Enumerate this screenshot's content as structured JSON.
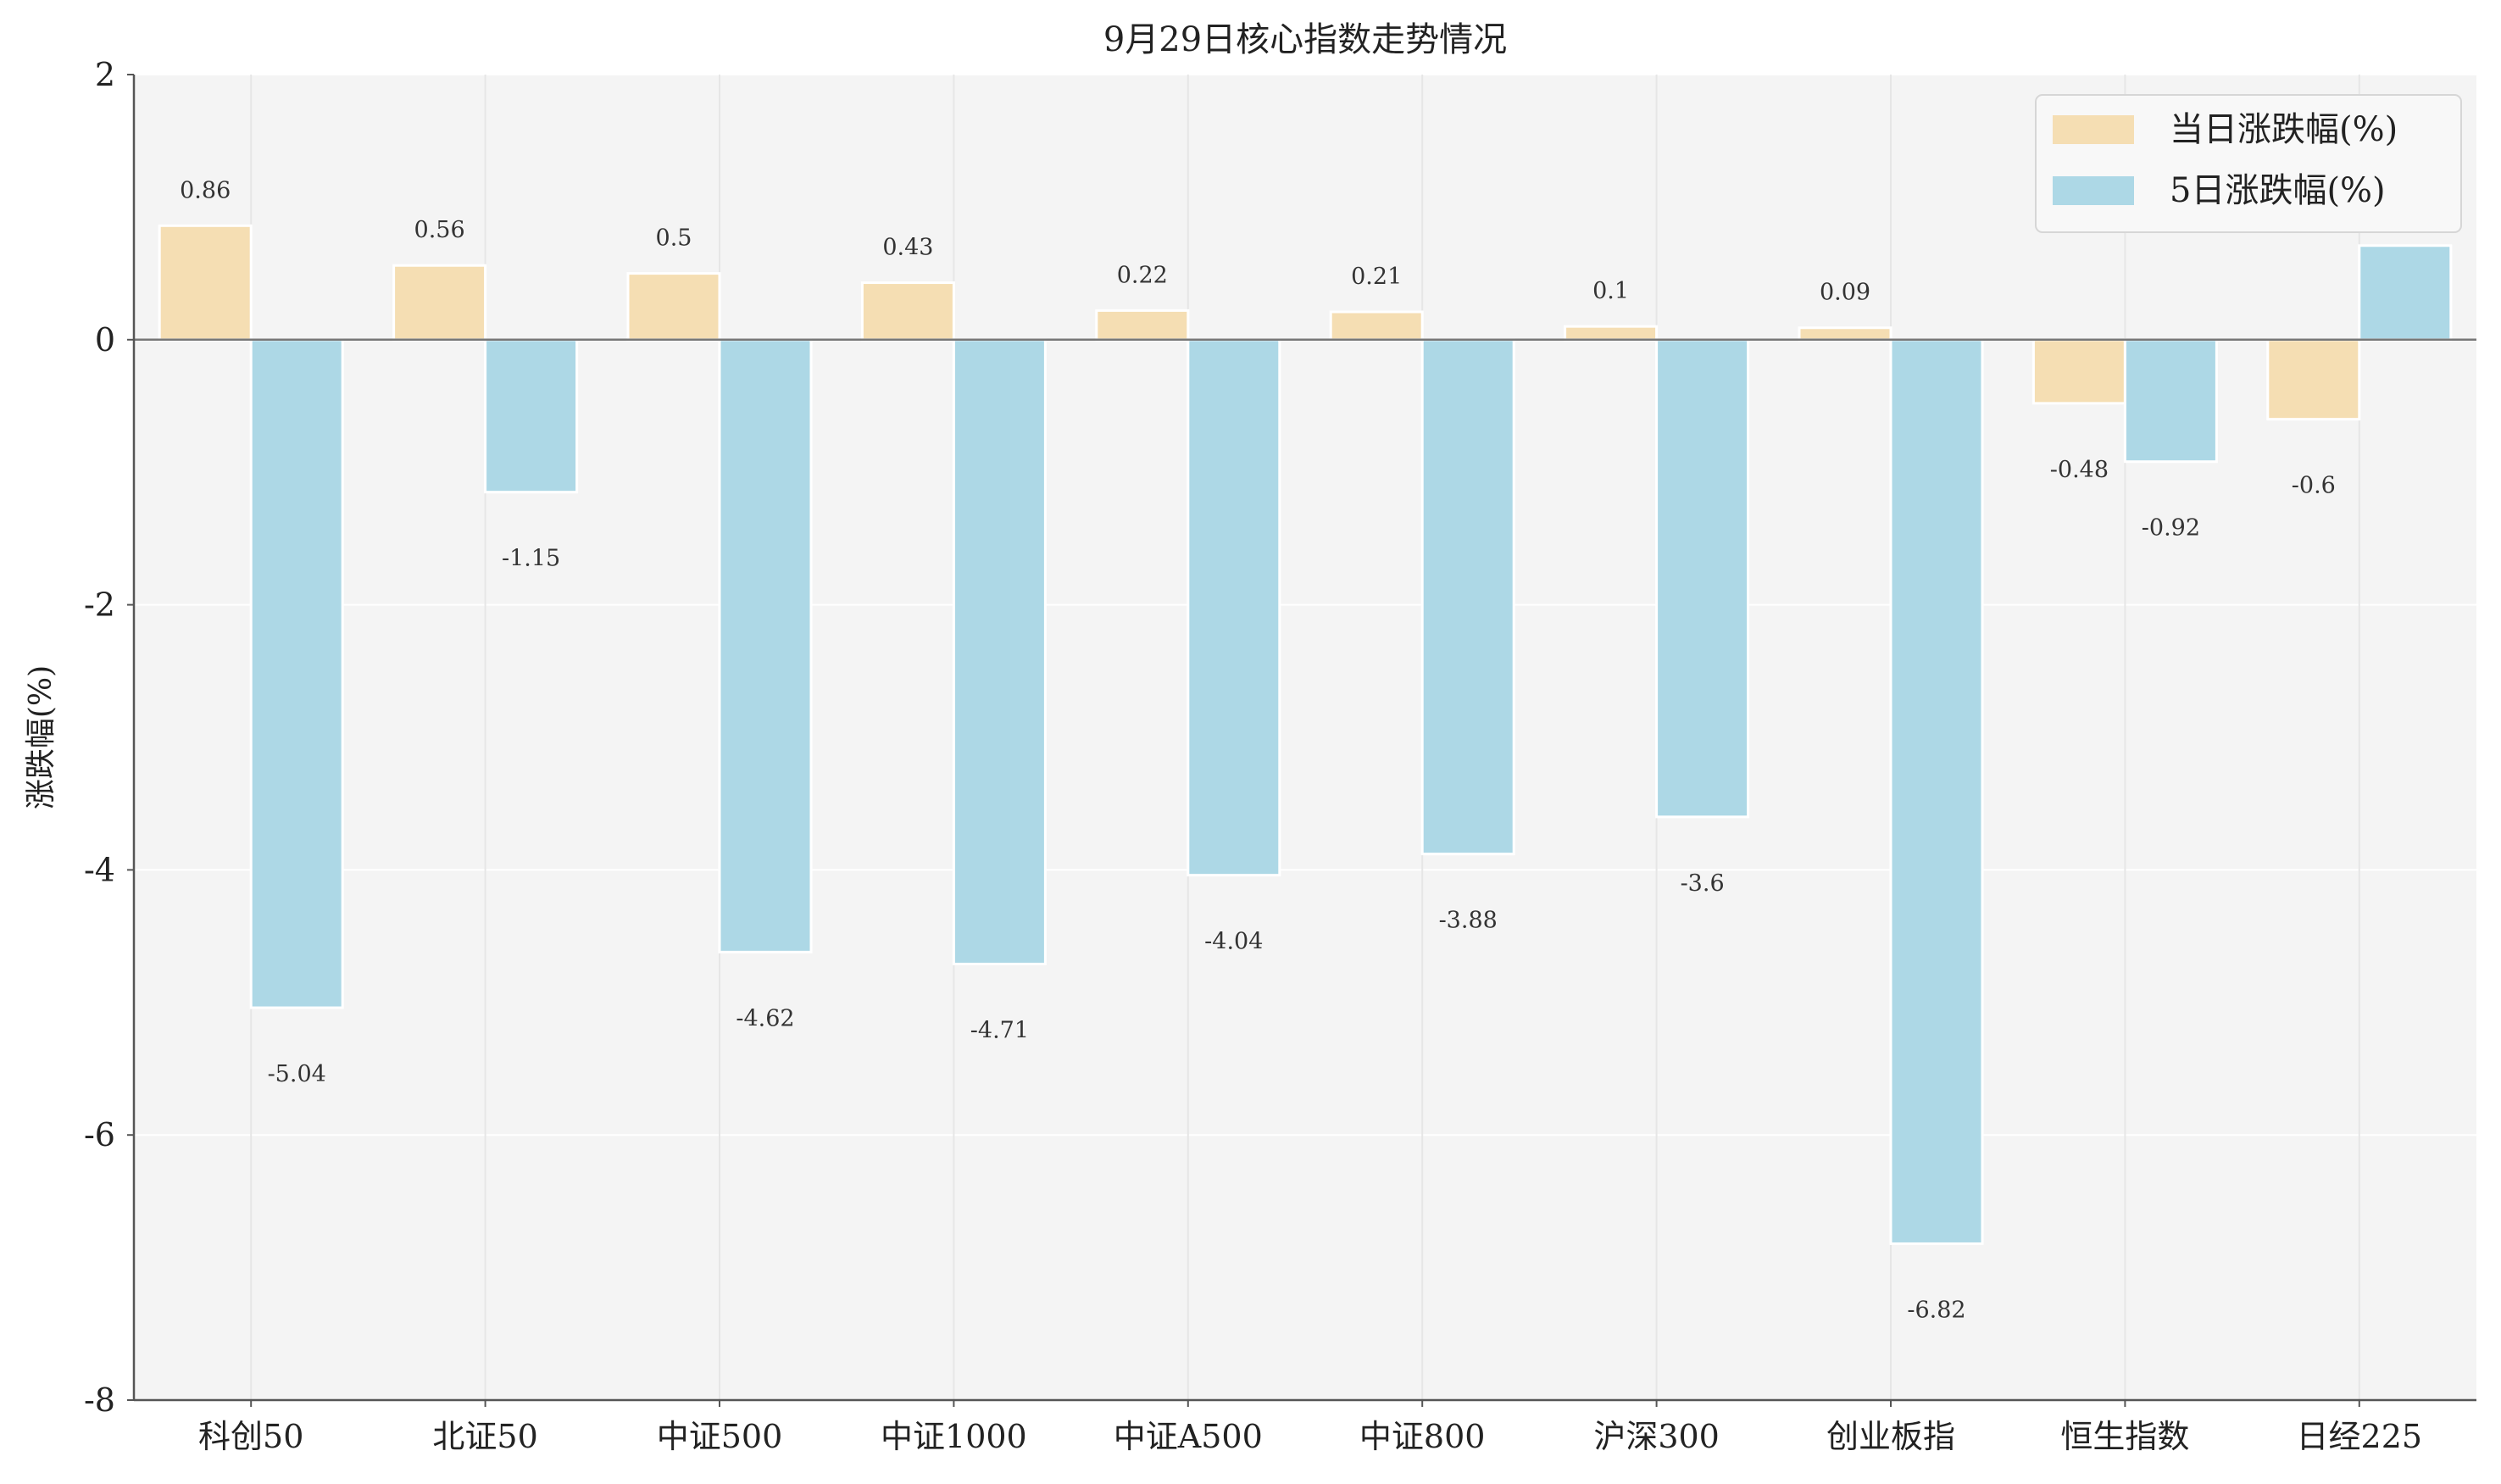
{
  "chart_data": {
    "type": "bar",
    "title": "9月29日核心指数走势情况",
    "xlabel": "",
    "ylabel": "涨跌幅(%)",
    "ylim": [
      -8,
      2
    ],
    "yticks": [
      2,
      0,
      -2,
      -4,
      -6,
      -8
    ],
    "grid": true,
    "legend_position": "top-right",
    "categories": [
      "科创50",
      "北证50",
      "中证500",
      "中证1000",
      "中证A500",
      "中证800",
      "沪深300",
      "创业板指",
      "恒生指数",
      "日经225"
    ],
    "series": [
      {
        "name": "当日涨跌幅(%)",
        "color": "#f5deb3",
        "values": [
          0.86,
          0.56,
          0.5,
          0.43,
          0.22,
          0.21,
          0.1,
          0.09,
          -0.48,
          -0.6
        ]
      },
      {
        "name": "5日涨跌幅(%)",
        "color": "#add8e6",
        "values": [
          -5.04,
          -1.15,
          -4.62,
          -4.71,
          -4.04,
          -3.88,
          -3.6,
          -6.82,
          -0.92,
          0.71
        ]
      }
    ]
  }
}
